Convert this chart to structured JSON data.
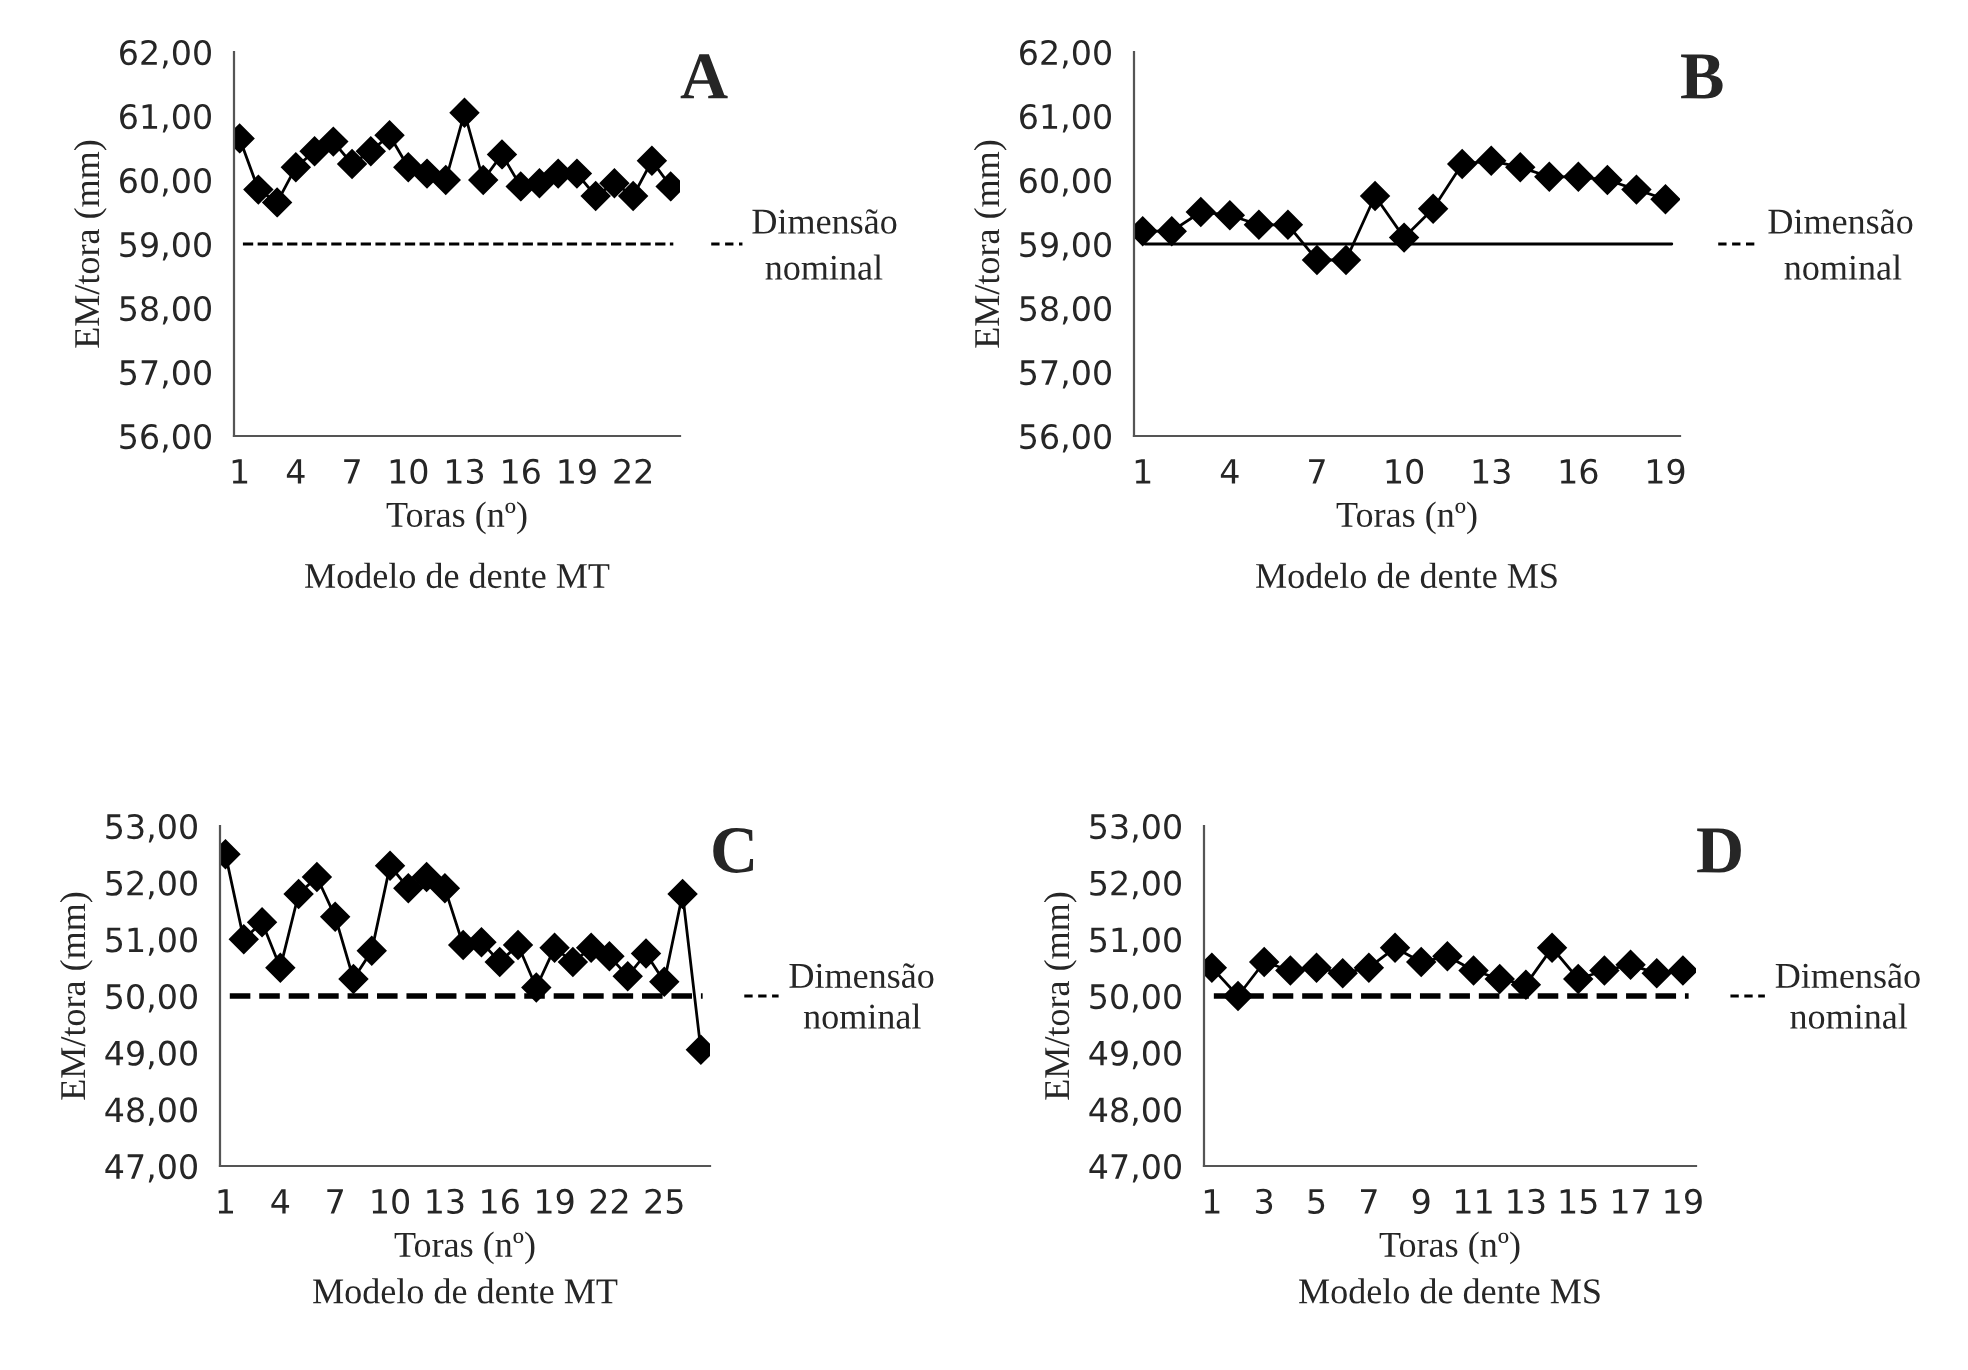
{
  "chart_data": [
    {
      "type": "line",
      "title": "A",
      "xlabel": "Toras (nº)",
      "ylabel": "EM/tora (mm)",
      "annotations": [
        "Modelo de dente MT"
      ],
      "categories": [
        "1",
        null,
        null,
        "4",
        null,
        null,
        "7",
        null,
        null,
        "10",
        null,
        null,
        "13",
        null,
        null,
        "16",
        null,
        null,
        "19",
        null,
        null,
        "22",
        null,
        null
      ],
      "series": [
        {
          "color": "#000000",
          "values": [
            60.65,
            59.85,
            59.65,
            60.2,
            60.45,
            60.6,
            60.25,
            60.45,
            60.7,
            60.2,
            60.1,
            60.0,
            61.05,
            60.0,
            60.4,
            59.9,
            59.95,
            60.1,
            60.1,
            59.75,
            59.95,
            59.75,
            60.3,
            59.9
          ]
        }
      ],
      "ylim": [
        56,
        62
      ],
      "yticks": [
        {
          "value": 56,
          "label": "56,00"
        },
        {
          "value": 57,
          "label": "57,00"
        },
        {
          "value": 58,
          "label": "58,00"
        },
        {
          "value": 59,
          "label": "59,00"
        },
        {
          "value": 60,
          "label": "60,00"
        },
        {
          "value": 61,
          "label": "61,00"
        },
        {
          "value": 62,
          "label": "62,00"
        }
      ],
      "ref_lines": [
        {
          "axis": "y",
          "value": 59,
          "label": "Dimensão nominal",
          "color": "#000000",
          "line_style": "dashed"
        }
      ],
      "marker": "diamond",
      "line_style": "solid",
      "grid": false
    },
    {
      "type": "line",
      "title": "B",
      "xlabel": "Toras (nº)",
      "ylabel": "EM/tora (mm)",
      "annotations": [
        "Modelo de dente MS"
      ],
      "categories": [
        "1",
        null,
        null,
        "4",
        null,
        null,
        "7",
        null,
        null,
        "10",
        null,
        null,
        "13",
        null,
        null,
        "16",
        null,
        null,
        "19"
      ],
      "series": [
        {
          "color": "#000000",
          "values": [
            59.2,
            59.2,
            59.5,
            59.45,
            59.3,
            59.3,
            58.75,
            58.75,
            59.75,
            59.1,
            59.55,
            60.25,
            60.3,
            60.2,
            60.05,
            60.05,
            60.0,
            59.85,
            59.7
          ]
        }
      ],
      "ylim": [
        56,
        62
      ],
      "yticks": [
        {
          "value": 56,
          "label": "56,00"
        },
        {
          "value": 57,
          "label": "57,00"
        },
        {
          "value": 58,
          "label": "58,00"
        },
        {
          "value": 59,
          "label": "59,00"
        },
        {
          "value": 60,
          "label": "60,00"
        },
        {
          "value": 61,
          "label": "61,00"
        },
        {
          "value": 62,
          "label": "62,00"
        }
      ],
      "ref_lines": [
        {
          "axis": "y",
          "value": 59,
          "label": "Dimensão nominal",
          "color": "#000000",
          "line_style": "solid"
        }
      ],
      "marker": "diamond",
      "line_style": "solid",
      "grid": false
    },
    {
      "type": "line",
      "title": "C",
      "xlabel": "Toras (nº)",
      "ylabel": "EM/tora (mm)",
      "annotations": [
        "Modelo de dente MT"
      ],
      "categories": [
        "1",
        null,
        null,
        "4",
        null,
        null,
        "7",
        null,
        null,
        "10",
        null,
        null,
        "13",
        null,
        null,
        "16",
        null,
        null,
        "19",
        null,
        null,
        "22",
        null,
        null,
        "25",
        null,
        null
      ],
      "series": [
        {
          "color": "#000000",
          "values": [
            52.5,
            51.0,
            51.3,
            50.5,
            51.8,
            52.1,
            51.4,
            50.3,
            50.8,
            52.3,
            51.9,
            52.1,
            51.9,
            50.9,
            50.95,
            50.6,
            50.9,
            50.15,
            50.85,
            50.6,
            50.85,
            50.7,
            50.35,
            50.75,
            50.25,
            51.8,
            49.05
          ]
        }
      ],
      "ylim": [
        47,
        53
      ],
      "yticks": [
        {
          "value": 47,
          "label": "47,00"
        },
        {
          "value": 48,
          "label": "48,00"
        },
        {
          "value": 49,
          "label": "49,00"
        },
        {
          "value": 50,
          "label": "50,00"
        },
        {
          "value": 51,
          "label": "51,00"
        },
        {
          "value": 52,
          "label": "52,00"
        },
        {
          "value": 53,
          "label": "53,00"
        }
      ],
      "ref_lines": [
        {
          "axis": "y",
          "value": 50,
          "label": "Dimensão nominal",
          "color": "#000000",
          "line_style": "dashed"
        }
      ],
      "marker": "diamond",
      "line_style": "solid",
      "grid": false
    },
    {
      "type": "line",
      "title": "D",
      "xlabel": "Toras (nº)",
      "ylabel": "EM/tora (mm)",
      "annotations": [
        "Modelo de dente MS"
      ],
      "categories": [
        "1",
        null,
        "3",
        null,
        "5",
        null,
        "7",
        null,
        "9",
        null,
        "11",
        null,
        "13",
        null,
        "15",
        null,
        "17",
        null,
        "19"
      ],
      "series": [
        {
          "color": "#000000",
          "values": [
            50.5,
            50.0,
            50.6,
            50.45,
            50.5,
            50.4,
            50.5,
            50.85,
            50.6,
            50.7,
            50.45,
            50.3,
            50.2,
            50.85,
            50.3,
            50.45,
            50.55,
            50.4,
            50.45
          ]
        }
      ],
      "ylim": [
        47,
        53
      ],
      "yticks": [
        {
          "value": 47,
          "label": "47,00"
        },
        {
          "value": 48,
          "label": "48,00"
        },
        {
          "value": 49,
          "label": "49,00"
        },
        {
          "value": 50,
          "label": "50,00"
        },
        {
          "value": 51,
          "label": "51,00"
        },
        {
          "value": 52,
          "label": "52,00"
        },
        {
          "value": 53,
          "label": "53,00"
        }
      ],
      "ref_lines": [
        {
          "axis": "y",
          "value": 50,
          "label": "Dimensão nominal",
          "color": "#000000",
          "line_style": "dashed"
        }
      ],
      "marker": "diamond",
      "line_style": "solid",
      "grid": false
    }
  ]
}
